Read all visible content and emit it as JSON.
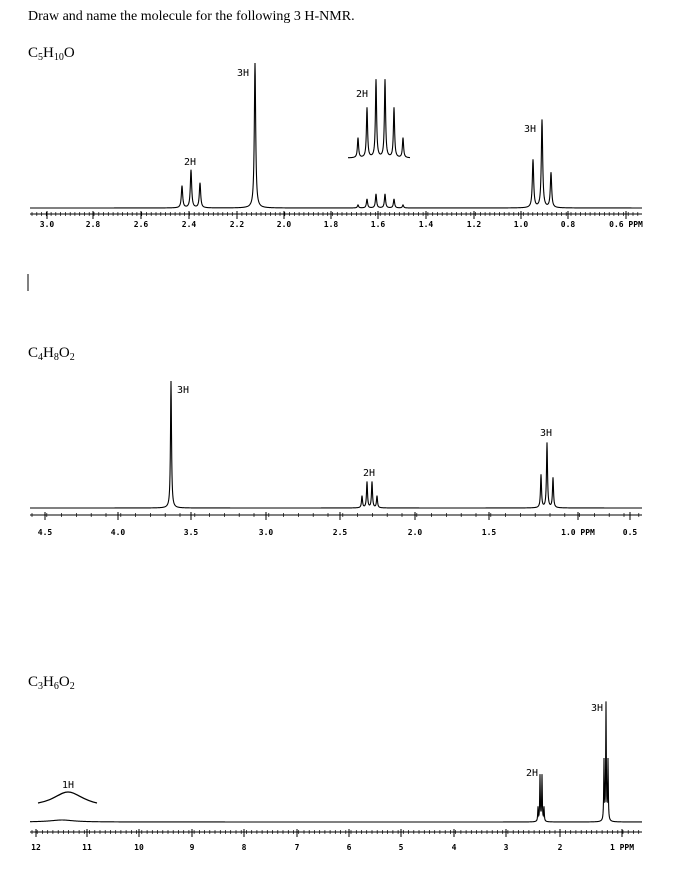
{
  "header": {
    "title": "Draw and name the molecule for the following 3 H-NMR."
  },
  "problems": [
    {
      "formula": [
        "C",
        "5",
        "H",
        "10",
        "O"
      ],
      "spectrum": {
        "ticks": [
          "3.0",
          "2.8",
          "2.6",
          "2.4",
          "2.2",
          "2.0",
          "1.8",
          "1.6",
          "1.4",
          "1.2",
          "1.0",
          "0.8",
          "0.6 PPM"
        ],
        "integrations": [
          "2H",
          "3H",
          "2H",
          "3H"
        ]
      }
    },
    {
      "formula": [
        "C",
        "4",
        "H",
        "8",
        "O",
        "2"
      ],
      "spectrum": {
        "ticks": [
          "4.5",
          "4.0",
          "3.5",
          "3.0",
          "2.5",
          "2.0",
          "1.5",
          "1.0 PPM",
          "0.5"
        ],
        "integrations": [
          "3H",
          "2H",
          "3H"
        ]
      }
    },
    {
      "formula": [
        "C",
        "3",
        "H",
        "6",
        "O",
        "2"
      ],
      "spectrum": {
        "ticks": [
          "12",
          "11",
          "10",
          "9",
          "8",
          "7",
          "6",
          "5",
          "4",
          "3",
          "2",
          "1 PPM"
        ],
        "integrations": [
          "1H",
          "2H",
          "3H"
        ]
      }
    }
  ]
}
